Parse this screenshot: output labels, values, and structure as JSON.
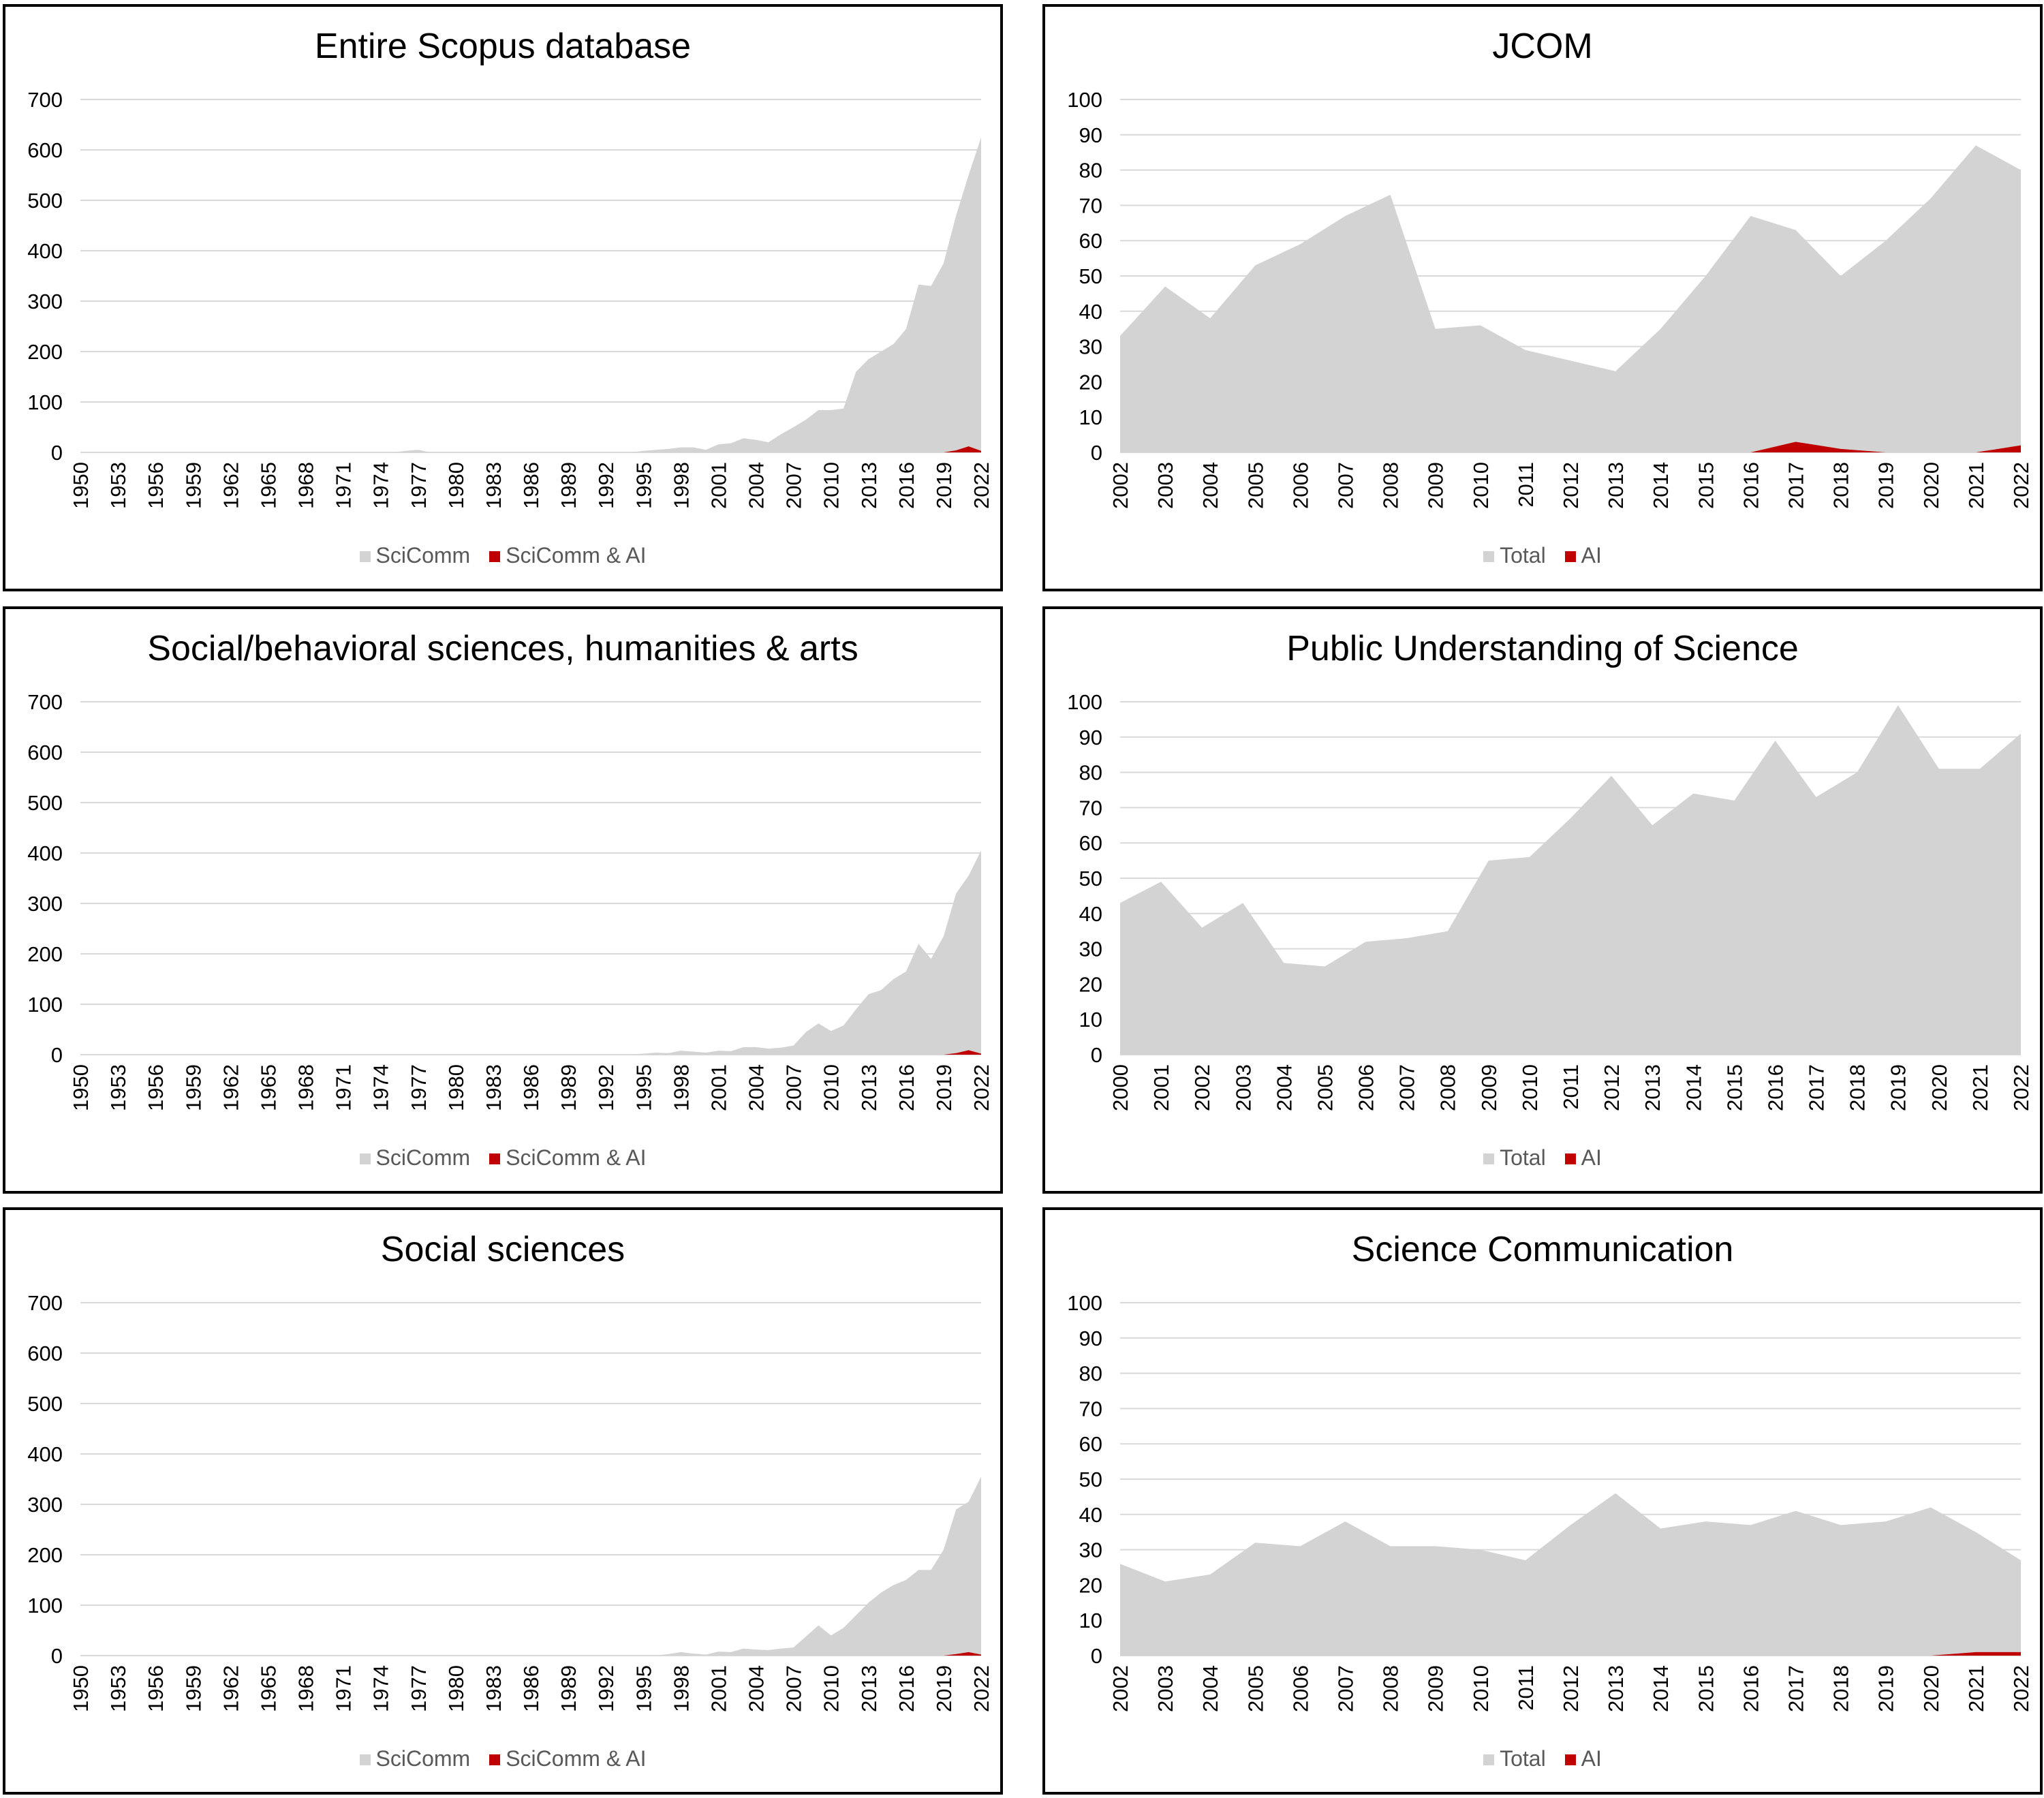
{
  "chart_data": [
    {
      "type": "area",
      "title": "Entire Scopus database",
      "ylim": [
        0,
        700
      ],
      "yticks": [
        0,
        100,
        200,
        300,
        400,
        500,
        600,
        700
      ],
      "xlim": [
        1950,
        2022
      ],
      "xticks": [
        1950,
        1953,
        1956,
        1959,
        1962,
        1965,
        1968,
        1971,
        1974,
        1977,
        1980,
        1983,
        1986,
        1989,
        1992,
        1995,
        1998,
        2001,
        2004,
        2007,
        2010,
        2013,
        2016,
        2019,
        2022
      ],
      "grid": true,
      "legend_position": "bottom",
      "colors": {
        "SciComm": "#d3d3d3",
        "SciComm & AI": "#c00000"
      },
      "series": [
        {
          "name": "SciComm",
          "x": [
            1950,
            1975,
            1976,
            1977,
            1978,
            1994,
            1995,
            1996,
            1997,
            1998,
            1999,
            2000,
            2001,
            2002,
            2003,
            2004,
            2005,
            2006,
            2007,
            2008,
            2009,
            2010,
            2011,
            2012,
            2013,
            2014,
            2015,
            2016,
            2017,
            2018,
            2019,
            2020,
            2021,
            2022
          ],
          "values": [
            0,
            0,
            3,
            5,
            0,
            0,
            3,
            5,
            7,
            10,
            10,
            5,
            16,
            18,
            28,
            25,
            20,
            36,
            50,
            65,
            84,
            84,
            87,
            160,
            185,
            200,
            215,
            245,
            333,
            330,
            375,
            470,
            550,
            625
          ]
        },
        {
          "name": "SciComm & AI",
          "x": [
            1950,
            2019,
            2020,
            2021,
            2022
          ],
          "values": [
            0,
            0,
            4,
            12,
            3
          ]
        }
      ]
    },
    {
      "type": "area",
      "title": "JCOM",
      "ylim": [
        0,
        100
      ],
      "yticks": [
        0,
        10,
        20,
        30,
        40,
        50,
        60,
        70,
        80,
        90,
        100
      ],
      "xlim": [
        2002,
        2022
      ],
      "xticks": [
        2002,
        2003,
        2004,
        2005,
        2006,
        2007,
        2008,
        2009,
        2010,
        2011,
        2012,
        2013,
        2014,
        2015,
        2016,
        2017,
        2018,
        2019,
        2020,
        2021,
        2022
      ],
      "grid": true,
      "legend_position": "bottom",
      "colors": {
        "Total": "#d3d3d3",
        "AI": "#c00000"
      },
      "series": [
        {
          "name": "Total",
          "x": [
            2002,
            2003,
            2004,
            2005,
            2006,
            2007,
            2008,
            2009,
            2010,
            2011,
            2012,
            2013,
            2014,
            2015,
            2016,
            2017,
            2018,
            2019,
            2020,
            2021,
            2022
          ],
          "values": [
            33,
            47,
            38,
            53,
            59,
            67,
            73,
            35,
            36,
            29,
            26,
            23,
            35,
            50,
            67,
            63,
            50,
            60,
            72,
            87,
            80
          ]
        },
        {
          "name": "AI",
          "x": [
            2002,
            2003,
            2004,
            2005,
            2006,
            2007,
            2008,
            2009,
            2010,
            2011,
            2012,
            2013,
            2014,
            2015,
            2016,
            2017,
            2018,
            2019,
            2020,
            2021,
            2022
          ],
          "values": [
            0,
            0,
            0,
            0,
            0,
            0,
            0,
            0,
            0,
            0,
            0,
            0,
            0,
            0,
            0,
            3,
            1,
            0,
            0,
            0,
            2
          ]
        }
      ]
    },
    {
      "type": "area",
      "title": "Social/behavioral sciences, humanities & arts",
      "ylim": [
        0,
        700
      ],
      "yticks": [
        0,
        100,
        200,
        300,
        400,
        500,
        600,
        700
      ],
      "xlim": [
        1950,
        2022
      ],
      "xticks": [
        1950,
        1953,
        1956,
        1959,
        1962,
        1965,
        1968,
        1971,
        1974,
        1977,
        1980,
        1983,
        1986,
        1989,
        1992,
        1995,
        1998,
        2001,
        2004,
        2007,
        2010,
        2013,
        2016,
        2019,
        2022
      ],
      "grid": true,
      "legend_position": "bottom",
      "colors": {
        "SciComm": "#d3d3d3",
        "SciComm & AI": "#c00000"
      },
      "series": [
        {
          "name": "SciComm",
          "x": [
            1950,
            1994,
            1995,
            1996,
            1997,
            1998,
            1999,
            2000,
            2001,
            2002,
            2003,
            2004,
            2005,
            2006,
            2007,
            2008,
            2009,
            2010,
            2011,
            2012,
            2013,
            2014,
            2015,
            2016,
            2017,
            2018,
            2019,
            2020,
            2021,
            2022
          ],
          "values": [
            0,
            0,
            2,
            4,
            3,
            8,
            6,
            4,
            8,
            7,
            15,
            15,
            12,
            14,
            18,
            45,
            62,
            47,
            58,
            90,
            120,
            128,
            150,
            165,
            220,
            190,
            235,
            320,
            355,
            405
          ]
        },
        {
          "name": "SciComm & AI",
          "x": [
            1950,
            2019,
            2020,
            2021,
            2022
          ],
          "values": [
            0,
            0,
            3,
            9,
            2
          ]
        }
      ]
    },
    {
      "type": "area",
      "title": "Public Understanding of Science",
      "ylim": [
        0,
        100
      ],
      "yticks": [
        0,
        10,
        20,
        30,
        40,
        50,
        60,
        70,
        80,
        90,
        100
      ],
      "xlim": [
        2000,
        2022
      ],
      "xticks": [
        2000,
        2001,
        2002,
        2003,
        2004,
        2005,
        2006,
        2007,
        2008,
        2009,
        2010,
        2011,
        2012,
        2013,
        2014,
        2015,
        2016,
        2017,
        2018,
        2019,
        2020,
        2021,
        2022
      ],
      "grid": true,
      "legend_position": "bottom",
      "colors": {
        "Total": "#d3d3d3",
        "AI": "#c00000"
      },
      "series": [
        {
          "name": "Total",
          "x": [
            2000,
            2001,
            2002,
            2003,
            2004,
            2005,
            2006,
            2007,
            2008,
            2009,
            2010,
            2011,
            2012,
            2013,
            2014,
            2015,
            2016,
            2017,
            2018,
            2019,
            2020,
            2021,
            2022
          ],
          "values": [
            43,
            49,
            36,
            43,
            26,
            25,
            32,
            33,
            35,
            55,
            56,
            67,
            79,
            65,
            74,
            72,
            89,
            73,
            80,
            99,
            81,
            81,
            91
          ]
        },
        {
          "name": "AI",
          "x": [
            2000,
            2022
          ],
          "values": [
            0,
            0
          ]
        }
      ]
    },
    {
      "type": "area",
      "title": "Social sciences",
      "ylim": [
        0,
        700
      ],
      "yticks": [
        0,
        100,
        200,
        300,
        400,
        500,
        600,
        700
      ],
      "xlim": [
        1950,
        2022
      ],
      "xticks": [
        1950,
        1953,
        1956,
        1959,
        1962,
        1965,
        1968,
        1971,
        1974,
        1977,
        1980,
        1983,
        1986,
        1989,
        1992,
        1995,
        1998,
        2001,
        2004,
        2007,
        2010,
        2013,
        2016,
        2019,
        2022
      ],
      "grid": true,
      "legend_position": "bottom",
      "colors": {
        "SciComm": "#d3d3d3",
        "SciComm & AI": "#c00000"
      },
      "series": [
        {
          "name": "SciComm",
          "x": [
            1950,
            1996,
            1997,
            1998,
            1999,
            2000,
            2001,
            2002,
            2003,
            2004,
            2005,
            2006,
            2007,
            2008,
            2009,
            2010,
            2011,
            2012,
            2013,
            2014,
            2015,
            2016,
            2017,
            2018,
            2019,
            2020,
            2021,
            2022
          ],
          "values": [
            0,
            0,
            3,
            7,
            4,
            2,
            8,
            7,
            14,
            12,
            11,
            14,
            16,
            38,
            60,
            40,
            55,
            80,
            105,
            125,
            140,
            150,
            170,
            170,
            210,
            290,
            305,
            355
          ]
        },
        {
          "name": "SciComm & AI",
          "x": [
            1950,
            2019,
            2020,
            2021,
            2022
          ],
          "values": [
            0,
            0,
            3,
            7,
            2
          ]
        }
      ]
    },
    {
      "type": "area",
      "title": "Science Communication",
      "ylim": [
        0,
        100
      ],
      "yticks": [
        0,
        10,
        20,
        30,
        40,
        50,
        60,
        70,
        80,
        90,
        100
      ],
      "xlim": [
        2002,
        2022
      ],
      "xticks": [
        2002,
        2003,
        2004,
        2005,
        2006,
        2007,
        2008,
        2009,
        2010,
        2011,
        2012,
        2013,
        2014,
        2015,
        2016,
        2017,
        2018,
        2019,
        2020,
        2021,
        2022
      ],
      "grid": true,
      "legend_position": "bottom",
      "colors": {
        "Total": "#d3d3d3",
        "AI": "#c00000"
      },
      "series": [
        {
          "name": "Total",
          "x": [
            2002,
            2003,
            2004,
            2005,
            2006,
            2007,
            2008,
            2009,
            2010,
            2011,
            2012,
            2013,
            2014,
            2015,
            2016,
            2017,
            2018,
            2019,
            2020,
            2021,
            2022
          ],
          "values": [
            26,
            21,
            23,
            32,
            31,
            38,
            31,
            31,
            30,
            27,
            37,
            46,
            36,
            38,
            37,
            41,
            37,
            38,
            42,
            35,
            27
          ]
        },
        {
          "name": "AI",
          "x": [
            2002,
            2003,
            2004,
            2005,
            2006,
            2007,
            2008,
            2009,
            2010,
            2011,
            2012,
            2013,
            2014,
            2015,
            2016,
            2017,
            2018,
            2019,
            2020,
            2021,
            2022
          ],
          "values": [
            0,
            0,
            0,
            0,
            0,
            0,
            0,
            0,
            0,
            0,
            0,
            0,
            0,
            0,
            0,
            0,
            0,
            0,
            0,
            1,
            1
          ]
        }
      ]
    }
  ]
}
